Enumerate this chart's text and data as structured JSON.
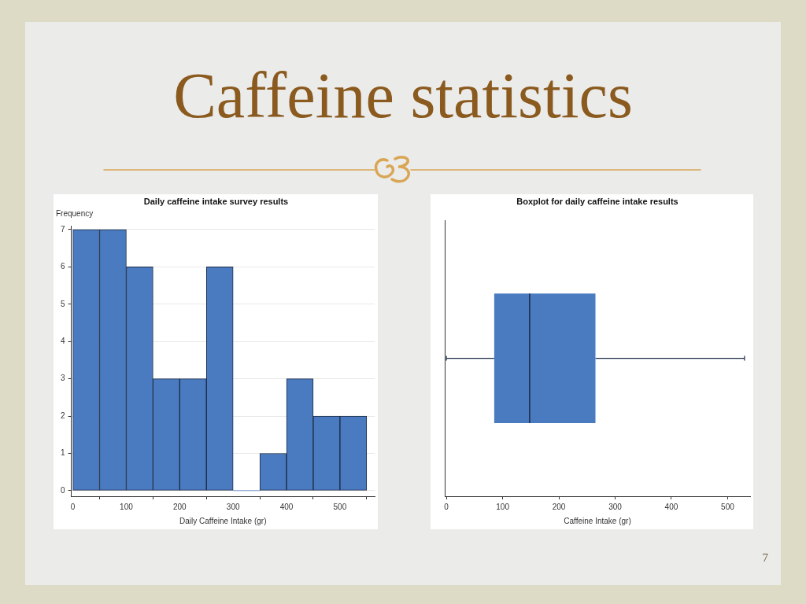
{
  "chart_data": [
    {
      "type": "other",
      "title": "Caffeine statistics",
      "annotations": [
        "7"
      ]
    },
    {
      "type": "histogram",
      "title": "Daily caffeine intake survey results",
      "xlabel": "Daily Caffeine Intake (gr)",
      "ylabel": "Frequency",
      "bins": [
        0,
        50,
        100,
        150,
        200,
        250,
        300,
        350,
        400,
        450,
        500,
        550
      ],
      "values": [
        7,
        7,
        6,
        3,
        3,
        6,
        0,
        1,
        3,
        2,
        2
      ],
      "color": "#4a7bc0",
      "xlim": [
        -3,
        565
      ],
      "ylim": [
        -0.15,
        7.1
      ],
      "xticks": [
        0,
        100,
        200,
        300,
        400,
        500
      ],
      "yticks": [
        0,
        1,
        2,
        3,
        4,
        5,
        6,
        7
      ],
      "grid": "y"
    },
    {
      "type": "box",
      "title": "Boxplot for daily caffeine intake results",
      "xlabel": "Caffeine Intake (gr)",
      "orientation": "horizontal",
      "categories": [
        null
      ],
      "boxes": [
        {
          "low": 0,
          "q1": 85,
          "median": 148,
          "q3": 265,
          "high": 530
        }
      ],
      "color": "#4a7bc0",
      "xlim": [
        -3,
        540
      ],
      "xticks": [
        0,
        100,
        200,
        300,
        400,
        500
      ],
      "tick_labels": "x"
    }
  ]
}
